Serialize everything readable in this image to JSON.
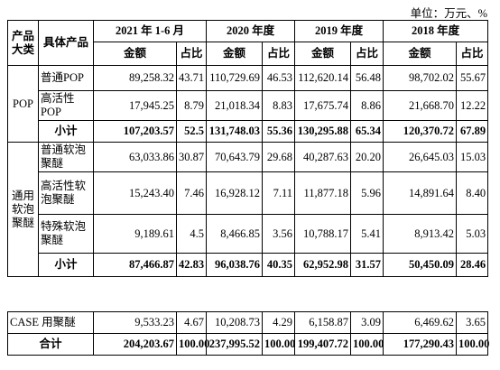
{
  "unit": "单位：万元、%",
  "header": {
    "category": "产品大类",
    "product": "具体产品",
    "periods": [
      "2021 年 1-6 月",
      "2020 年度",
      "2019 年度",
      "2018 年度"
    ],
    "amount": "金额",
    "share": "占比"
  },
  "groups": [
    {
      "category": "POP",
      "rows": [
        {
          "product": "普通POP",
          "cells": [
            "89,258.32",
            "43.71",
            "110,729.69",
            "46.53",
            "112,620.14",
            "56.48",
            "98,702.02",
            "55.67"
          ]
        },
        {
          "product": "高活性POP",
          "cells": [
            "17,945.25",
            "8.79",
            "21,018.34",
            "8.83",
            "17,675.74",
            "8.86",
            "21,668.70",
            "12.22"
          ]
        },
        {
          "product": "小计",
          "bold": true,
          "cells": [
            "107,203.57",
            "52.5",
            "131,748.03",
            "55.36",
            "130,295.88",
            "65.34",
            "120,370.72",
            "67.89"
          ]
        }
      ]
    },
    {
      "category": "通用软泡聚醚",
      "rows": [
        {
          "product": "普通软泡聚醚",
          "cells": [
            "63,033.86",
            "30.87",
            "70,643.79",
            "29.68",
            "40,287.63",
            "20.20",
            "26,645.03",
            "15.03"
          ]
        },
        {
          "product": "高活性软泡聚醚",
          "cells": [
            "15,243.40",
            "7.46",
            "16,928.12",
            "7.11",
            "11,877.18",
            "5.96",
            "14,891.64",
            "8.40"
          ]
        },
        {
          "product": "特殊软泡聚醚",
          "cells": [
            "9,189.61",
            "4.5",
            "8,466.85",
            "3.56",
            "10,788.17",
            "5.41",
            "8,913.42",
            "5.03"
          ]
        },
        {
          "product": "小计",
          "bold": true,
          "cells": [
            "87,466.87",
            "42.83",
            "96,038.76",
            "40.35",
            "62,952.98",
            "31.57",
            "50,450.09",
            "28.46"
          ]
        }
      ]
    }
  ],
  "totals": [
    {
      "label": "CASE 用聚醚",
      "cells": [
        "9,533.23",
        "4.67",
        "10,208.73",
        "4.29",
        "6,158.87",
        "3.09",
        "6,469.62",
        "3.65"
      ]
    },
    {
      "label": "合计",
      "bold": true,
      "cells": [
        "204,203.67",
        "100.00",
        "237,995.52",
        "100.00",
        "199,407.72",
        "100.00",
        "177,290.43",
        "100.00"
      ]
    }
  ]
}
